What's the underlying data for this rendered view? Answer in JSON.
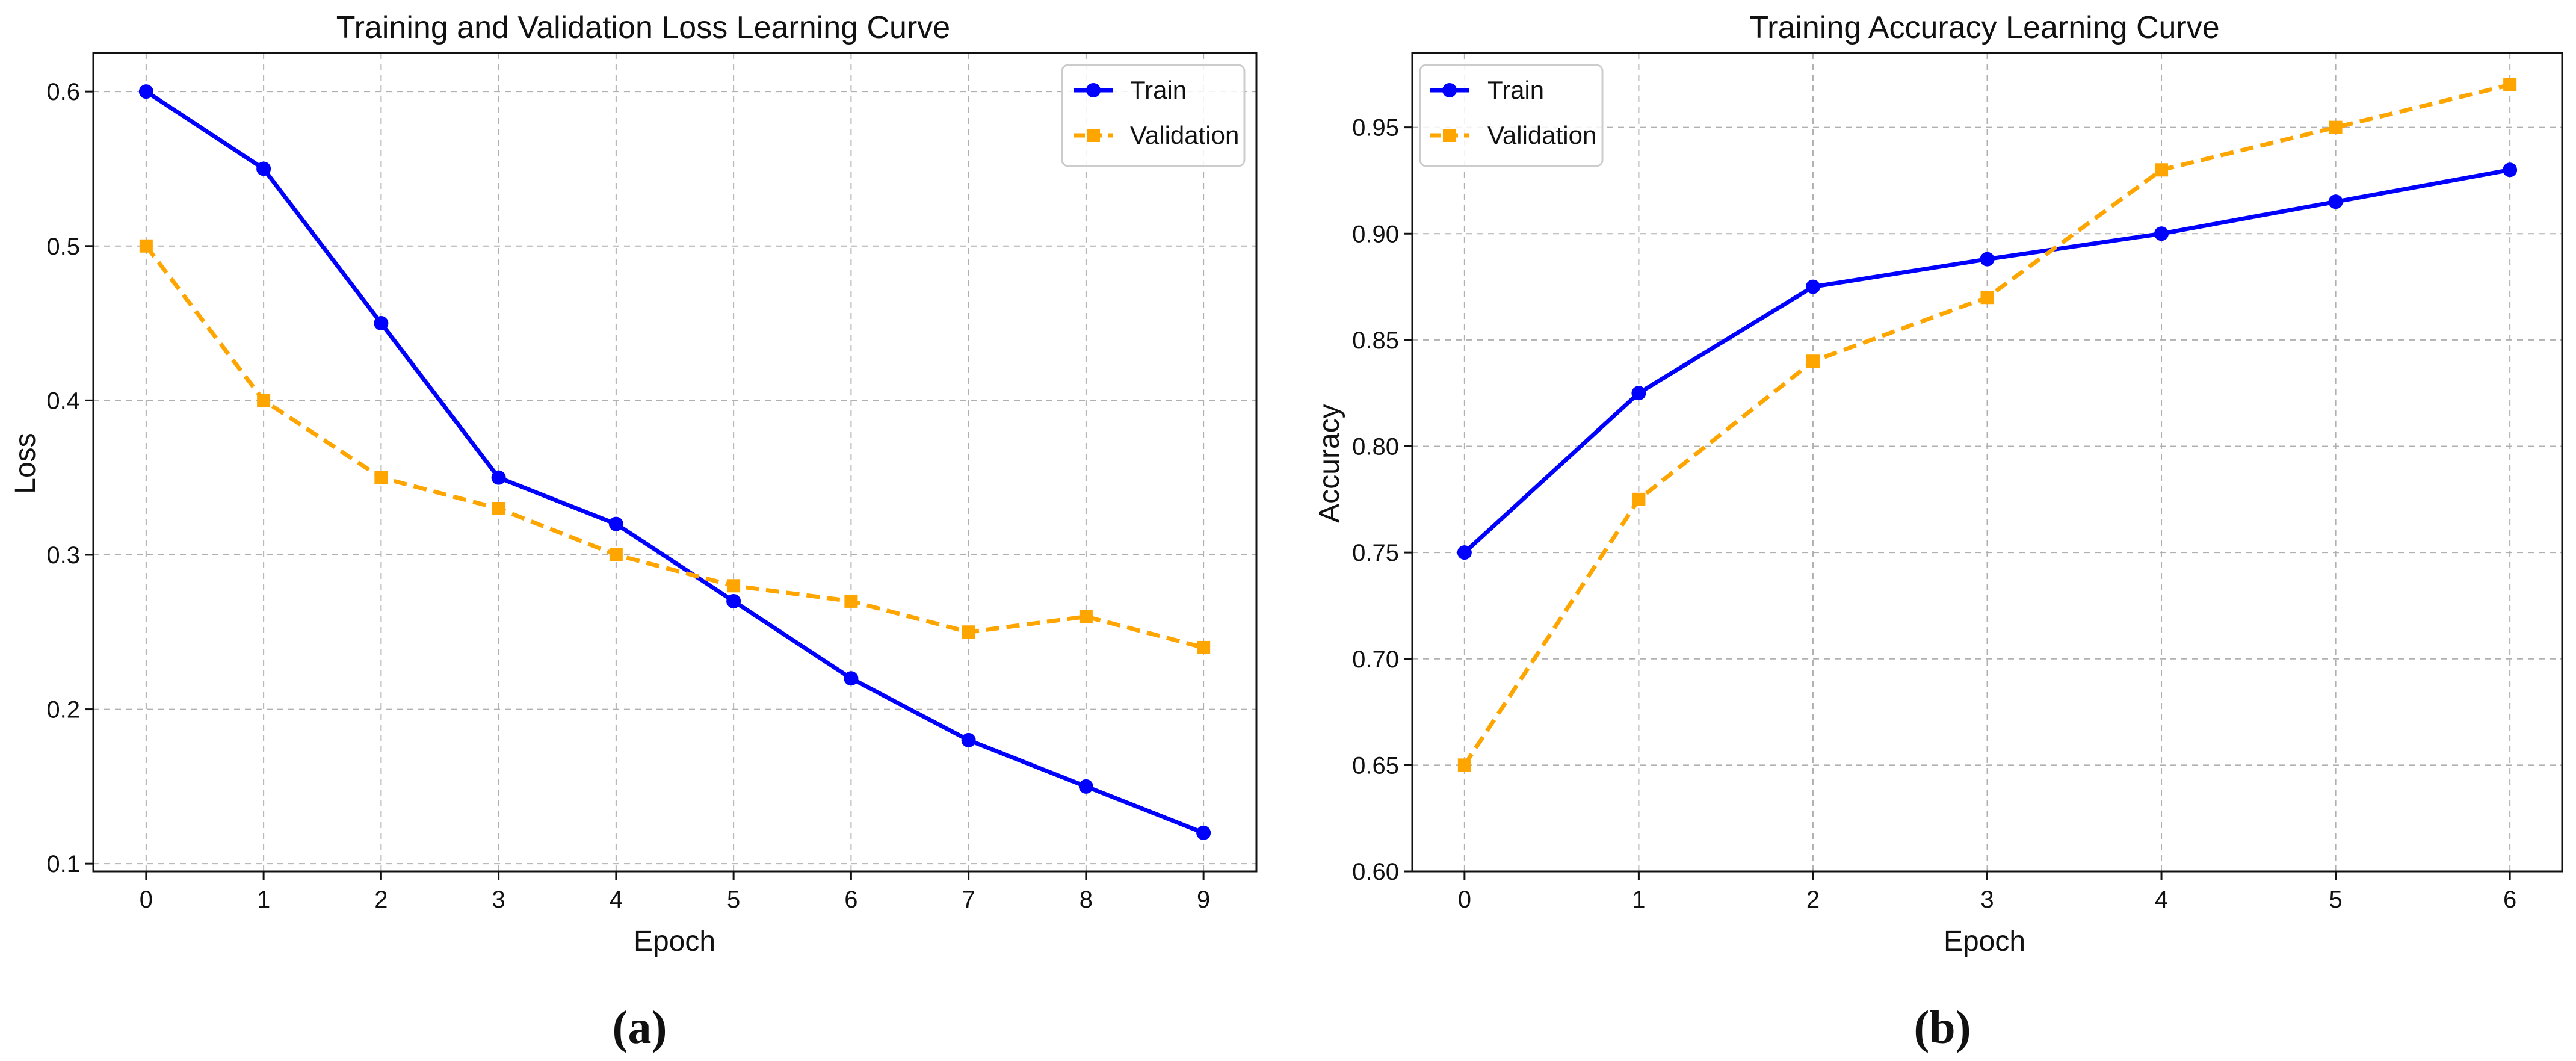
{
  "chart_data": [
    {
      "type": "line",
      "title": "Training and Validation Loss Learning Curve",
      "xlabel": "Epoch",
      "ylabel": "Loss",
      "caption": "(a)",
      "x": [
        0,
        1,
        2,
        3,
        4,
        5,
        6,
        7,
        8,
        9
      ],
      "xlim": [
        -0.45,
        9.45
      ],
      "ylim": [
        0.095,
        0.625
      ],
      "xticks": [
        0,
        1,
        2,
        3,
        4,
        5,
        6,
        7,
        8,
        9
      ],
      "yticks": [
        0.1,
        0.2,
        0.3,
        0.4,
        0.5,
        0.6
      ],
      "ytick_decimals": 1,
      "grid": true,
      "legend_position": "top-right",
      "series": [
        {
          "name": "Train",
          "color": "#0000ff",
          "line_style": "solid",
          "marker": "circle",
          "values": [
            0.6,
            0.55,
            0.45,
            0.35,
            0.32,
            0.27,
            0.22,
            0.18,
            0.15,
            0.12
          ]
        },
        {
          "name": "Validation",
          "color": "#ffa500",
          "line_style": "dashed",
          "marker": "square",
          "values": [
            0.5,
            0.4,
            0.35,
            0.33,
            0.3,
            0.28,
            0.27,
            0.25,
            0.26,
            0.24
          ]
        }
      ]
    },
    {
      "type": "line",
      "title": "Training Accuracy Learning Curve",
      "xlabel": "Epoch",
      "ylabel": "Accuracy",
      "caption": "(b)",
      "x": [
        0,
        1,
        2,
        3,
        4,
        5,
        6
      ],
      "xlim": [
        -0.3,
        6.3
      ],
      "ylim": [
        0.6,
        0.985
      ],
      "xticks": [
        0,
        1,
        2,
        3,
        4,
        5,
        6
      ],
      "yticks": [
        0.6,
        0.65,
        0.7,
        0.75,
        0.8,
        0.85,
        0.9,
        0.95
      ],
      "ytick_decimals": 2,
      "grid": true,
      "legend_position": "top-left",
      "series": [
        {
          "name": "Train",
          "color": "#0000ff",
          "line_style": "solid",
          "marker": "circle",
          "values": [
            0.75,
            0.825,
            0.875,
            0.888,
            0.9,
            0.915,
            0.93
          ]
        },
        {
          "name": "Validation",
          "color": "#ffa500",
          "line_style": "dashed",
          "marker": "square",
          "values": [
            0.65,
            0.775,
            0.84,
            0.87,
            0.93,
            0.95,
            0.97
          ]
        }
      ]
    }
  ]
}
